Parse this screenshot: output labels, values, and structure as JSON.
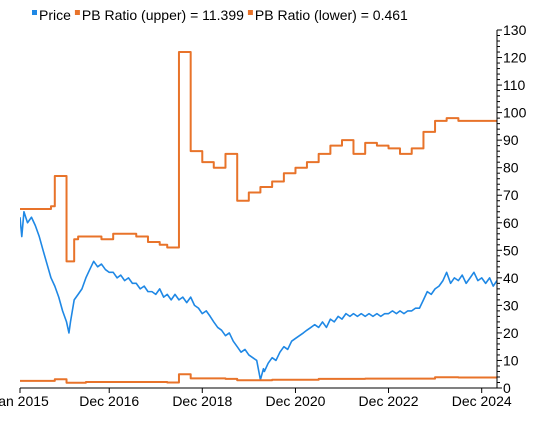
{
  "chart_data": {
    "type": "line",
    "colors": {
      "price": "#1f88e5",
      "pb": "#e8732a",
      "axis": "#000000"
    },
    "legend": [
      {
        "label": "Price",
        "color": "#1f88e5"
      },
      {
        "label": "PB Ratio (upper) = 11.399",
        "color": "#e8732a"
      },
      {
        "label": "PB Ratio (lower) = 0.461",
        "color": "#e8732a"
      }
    ],
    "legend_position": "top-left",
    "x_range": [
      "2015-01-01",
      "2025-03-31"
    ],
    "x_ticks": [
      {
        "date": "2015-01-01",
        "label": "Jan 2015"
      },
      {
        "date": "2016-12-01",
        "label": "Dec 2016"
      },
      {
        "date": "2018-12-01",
        "label": "Dec 2018"
      },
      {
        "date": "2020-12-01",
        "label": "Dec 2020"
      },
      {
        "date": "2022-12-01",
        "label": "Dec 2022"
      },
      {
        "date": "2024-12-01",
        "label": "Dec 2024"
      }
    ],
    "y_axis": "right",
    "ylim": [
      0,
      130
    ],
    "y_ticks": [
      0,
      10,
      20,
      30,
      40,
      50,
      60,
      70,
      80,
      90,
      100,
      110,
      120,
      130
    ],
    "grid": false,
    "series": [
      {
        "name": "Price",
        "style": "line",
        "color": "#1f88e5",
        "points": [
          [
            "2015-01-01",
            62
          ],
          [
            "2015-01-15",
            55
          ],
          [
            "2015-02-01",
            64
          ],
          [
            "2015-03-01",
            60
          ],
          [
            "2015-04-01",
            62
          ],
          [
            "2015-05-01",
            59
          ],
          [
            "2015-06-01",
            55
          ],
          [
            "2015-07-01",
            50
          ],
          [
            "2015-08-01",
            45
          ],
          [
            "2015-09-01",
            40
          ],
          [
            "2015-10-01",
            37
          ],
          [
            "2015-11-01",
            33
          ],
          [
            "2015-12-01",
            28
          ],
          [
            "2016-01-01",
            24
          ],
          [
            "2016-01-20",
            20
          ],
          [
            "2016-02-01",
            24
          ],
          [
            "2016-03-01",
            32
          ],
          [
            "2016-04-01",
            34
          ],
          [
            "2016-05-01",
            36
          ],
          [
            "2016-06-01",
            40
          ],
          [
            "2016-07-01",
            43
          ],
          [
            "2016-08-01",
            46
          ],
          [
            "2016-09-01",
            44
          ],
          [
            "2016-10-01",
            45
          ],
          [
            "2016-11-01",
            43
          ],
          [
            "2016-12-01",
            42
          ],
          [
            "2017-01-01",
            42
          ],
          [
            "2017-02-01",
            40
          ],
          [
            "2017-03-01",
            41
          ],
          [
            "2017-04-01",
            39
          ],
          [
            "2017-05-01",
            40
          ],
          [
            "2017-06-01",
            38
          ],
          [
            "2017-07-01",
            38
          ],
          [
            "2017-08-01",
            36
          ],
          [
            "2017-09-01",
            37
          ],
          [
            "2017-10-01",
            35
          ],
          [
            "2017-11-01",
            35
          ],
          [
            "2017-12-01",
            34
          ],
          [
            "2018-01-01",
            36
          ],
          [
            "2018-02-01",
            33
          ],
          [
            "2018-03-01",
            34
          ],
          [
            "2018-04-01",
            32
          ],
          [
            "2018-05-01",
            34
          ],
          [
            "2018-06-01",
            32
          ],
          [
            "2018-07-01",
            33
          ],
          [
            "2018-08-01",
            31
          ],
          [
            "2018-09-01",
            33
          ],
          [
            "2018-10-01",
            30
          ],
          [
            "2018-11-01",
            29
          ],
          [
            "2018-12-01",
            27
          ],
          [
            "2019-01-01",
            28
          ],
          [
            "2019-02-01",
            26
          ],
          [
            "2019-03-01",
            24
          ],
          [
            "2019-04-01",
            22
          ],
          [
            "2019-05-01",
            21
          ],
          [
            "2019-06-01",
            19
          ],
          [
            "2019-07-01",
            20
          ],
          [
            "2019-08-01",
            17
          ],
          [
            "2019-09-01",
            15
          ],
          [
            "2019-10-01",
            13
          ],
          [
            "2019-11-01",
            14
          ],
          [
            "2019-12-01",
            12
          ],
          [
            "2020-01-01",
            11
          ],
          [
            "2020-02-01",
            10
          ],
          [
            "2020-03-01",
            3
          ],
          [
            "2020-03-25",
            7
          ],
          [
            "2020-04-01",
            6
          ],
          [
            "2020-05-01",
            9
          ],
          [
            "2020-06-01",
            11
          ],
          [
            "2020-07-01",
            10
          ],
          [
            "2020-08-01",
            13
          ],
          [
            "2020-09-01",
            15
          ],
          [
            "2020-10-01",
            14
          ],
          [
            "2020-11-01",
            17
          ],
          [
            "2020-12-01",
            18
          ],
          [
            "2021-01-01",
            19
          ],
          [
            "2021-02-01",
            20
          ],
          [
            "2021-03-01",
            21
          ],
          [
            "2021-04-01",
            22
          ],
          [
            "2021-05-01",
            23
          ],
          [
            "2021-06-01",
            22
          ],
          [
            "2021-07-01",
            24
          ],
          [
            "2021-08-01",
            22
          ],
          [
            "2021-09-01",
            25
          ],
          [
            "2021-10-01",
            24
          ],
          [
            "2021-11-01",
            26
          ],
          [
            "2021-12-01",
            25
          ],
          [
            "2022-01-01",
            27
          ],
          [
            "2022-02-01",
            26
          ],
          [
            "2022-03-01",
            27
          ],
          [
            "2022-04-01",
            26
          ],
          [
            "2022-05-01",
            27
          ],
          [
            "2022-06-01",
            26
          ],
          [
            "2022-07-01",
            27
          ],
          [
            "2022-08-01",
            26
          ],
          [
            "2022-09-01",
            27
          ],
          [
            "2022-10-01",
            26
          ],
          [
            "2022-11-01",
            27
          ],
          [
            "2022-12-01",
            27
          ],
          [
            "2023-01-01",
            28
          ],
          [
            "2023-02-01",
            27
          ],
          [
            "2023-03-01",
            28
          ],
          [
            "2023-04-01",
            27
          ],
          [
            "2023-05-01",
            28
          ],
          [
            "2023-06-01",
            28
          ],
          [
            "2023-07-01",
            29
          ],
          [
            "2023-08-01",
            29
          ],
          [
            "2023-09-01",
            32
          ],
          [
            "2023-10-01",
            35
          ],
          [
            "2023-11-01",
            34
          ],
          [
            "2023-12-01",
            36
          ],
          [
            "2024-01-01",
            37
          ],
          [
            "2024-02-01",
            39
          ],
          [
            "2024-03-01",
            42
          ],
          [
            "2024-04-01",
            38
          ],
          [
            "2024-05-01",
            40
          ],
          [
            "2024-06-01",
            39
          ],
          [
            "2024-07-01",
            41
          ],
          [
            "2024-08-01",
            38
          ],
          [
            "2024-09-01",
            40
          ],
          [
            "2024-10-01",
            42
          ],
          [
            "2024-11-01",
            39
          ],
          [
            "2024-12-01",
            40
          ],
          [
            "2025-01-01",
            38
          ],
          [
            "2025-02-01",
            40
          ],
          [
            "2025-03-01",
            37
          ],
          [
            "2025-03-31",
            39
          ]
        ]
      },
      {
        "name": "PB Ratio (upper) = 11.399",
        "style": "step",
        "color": "#e8732a",
        "points": [
          [
            "2015-01-01",
            65
          ],
          [
            "2015-07-01",
            65
          ],
          [
            "2015-09-01",
            66
          ],
          [
            "2015-10-01",
            77
          ],
          [
            "2016-01-01",
            46
          ],
          [
            "2016-03-01",
            54
          ],
          [
            "2016-04-01",
            55
          ],
          [
            "2016-07-01",
            55
          ],
          [
            "2016-10-01",
            54
          ],
          [
            "2017-01-01",
            56
          ],
          [
            "2017-07-01",
            55
          ],
          [
            "2017-10-01",
            53
          ],
          [
            "2018-01-01",
            52
          ],
          [
            "2018-03-01",
            51
          ],
          [
            "2018-06-01",
            122
          ],
          [
            "2018-09-01",
            86
          ],
          [
            "2018-12-01",
            82
          ],
          [
            "2019-03-01",
            80
          ],
          [
            "2019-06-01",
            85
          ],
          [
            "2019-09-01",
            68
          ],
          [
            "2019-12-01",
            71
          ],
          [
            "2020-03-01",
            73
          ],
          [
            "2020-06-01",
            75
          ],
          [
            "2020-09-01",
            78
          ],
          [
            "2020-12-01",
            80
          ],
          [
            "2021-03-01",
            82
          ],
          [
            "2021-06-01",
            85
          ],
          [
            "2021-09-01",
            88
          ],
          [
            "2021-12-01",
            90
          ],
          [
            "2022-03-01",
            85
          ],
          [
            "2022-06-01",
            89
          ],
          [
            "2022-09-01",
            88
          ],
          [
            "2022-12-01",
            87
          ],
          [
            "2023-03-01",
            85
          ],
          [
            "2023-06-01",
            87
          ],
          [
            "2023-09-01",
            93
          ],
          [
            "2023-12-01",
            97
          ],
          [
            "2024-03-01",
            98
          ],
          [
            "2024-06-01",
            97
          ],
          [
            "2025-03-31",
            97
          ]
        ]
      },
      {
        "name": "PB Ratio (lower) = 0.461",
        "style": "step",
        "color": "#e8732a",
        "points": [
          [
            "2015-01-01",
            2.6
          ],
          [
            "2015-07-01",
            2.6
          ],
          [
            "2015-10-01",
            3.2
          ],
          [
            "2016-01-01",
            1.9
          ],
          [
            "2016-06-01",
            2.2
          ],
          [
            "2017-06-01",
            2.2
          ],
          [
            "2018-03-01",
            2.0
          ],
          [
            "2018-06-01",
            5.0
          ],
          [
            "2018-09-01",
            3.5
          ],
          [
            "2019-06-01",
            3.3
          ],
          [
            "2019-09-01",
            2.8
          ],
          [
            "2020-06-01",
            3.0
          ],
          [
            "2021-06-01",
            3.3
          ],
          [
            "2022-06-01",
            3.4
          ],
          [
            "2023-06-01",
            3.4
          ],
          [
            "2023-12-01",
            3.9
          ],
          [
            "2024-06-01",
            3.8
          ],
          [
            "2025-03-31",
            3.8
          ]
        ]
      }
    ]
  }
}
